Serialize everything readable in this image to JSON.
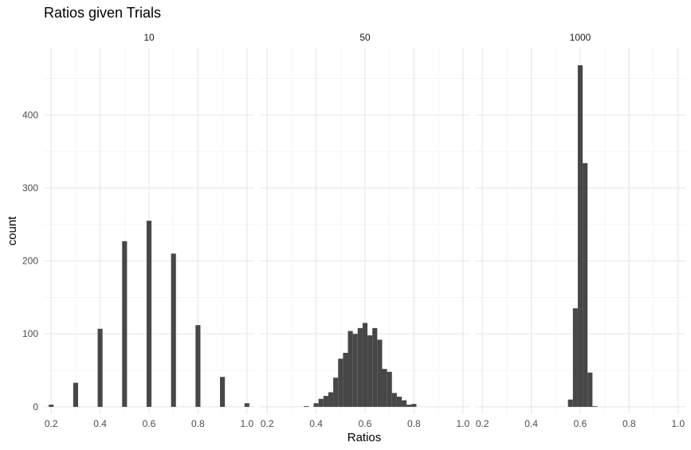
{
  "chart_data": {
    "type": "bar",
    "title": "Ratios given Trials",
    "xlabel": "Ratios",
    "ylabel": "count",
    "xlim": [
      0.17,
      1.03
    ],
    "ylim": [
      -10,
      492
    ],
    "x_ticks": [
      "0.2",
      "0.4",
      "0.6",
      "0.8",
      "1.0"
    ],
    "y_ticks": [
      "0",
      "100",
      "200",
      "300",
      "400"
    ],
    "grid": true,
    "legend": "none",
    "bar_color": "#474747",
    "panels": [
      {
        "name": "10",
        "bin_width": 0.02,
        "bins": [
          {
            "x": 0.2,
            "count": 3
          },
          {
            "x": 0.3,
            "count": 33
          },
          {
            "x": 0.4,
            "count": 107
          },
          {
            "x": 0.5,
            "count": 227
          },
          {
            "x": 0.6,
            "count": 255
          },
          {
            "x": 0.7,
            "count": 210
          },
          {
            "x": 0.8,
            "count": 112
          },
          {
            "x": 0.9,
            "count": 41
          },
          {
            "x": 1.0,
            "count": 5
          }
        ]
      },
      {
        "name": "50",
        "bin_width": 0.02,
        "bins": [
          {
            "x": 0.36,
            "count": 1
          },
          {
            "x": 0.4,
            "count": 5
          },
          {
            "x": 0.42,
            "count": 11
          },
          {
            "x": 0.44,
            "count": 15
          },
          {
            "x": 0.46,
            "count": 20
          },
          {
            "x": 0.48,
            "count": 40
          },
          {
            "x": 0.5,
            "count": 66
          },
          {
            "x": 0.52,
            "count": 74
          },
          {
            "x": 0.54,
            "count": 104
          },
          {
            "x": 0.56,
            "count": 100
          },
          {
            "x": 0.58,
            "count": 108
          },
          {
            "x": 0.6,
            "count": 115
          },
          {
            "x": 0.62,
            "count": 98
          },
          {
            "x": 0.64,
            "count": 108
          },
          {
            "x": 0.66,
            "count": 92
          },
          {
            "x": 0.68,
            "count": 52
          },
          {
            "x": 0.7,
            "count": 48
          },
          {
            "x": 0.72,
            "count": 19
          },
          {
            "x": 0.74,
            "count": 14
          },
          {
            "x": 0.76,
            "count": 9
          },
          {
            "x": 0.78,
            "count": 3
          },
          {
            "x": 0.8,
            "count": 4
          }
        ]
      },
      {
        "name": "1000",
        "bin_width": 0.02,
        "bins": [
          {
            "x": 0.56,
            "count": 10
          },
          {
            "x": 0.58,
            "count": 135
          },
          {
            "x": 0.6,
            "count": 468
          },
          {
            "x": 0.62,
            "count": 334
          },
          {
            "x": 0.64,
            "count": 47
          },
          {
            "x": 0.66,
            "count": 1
          }
        ]
      }
    ]
  }
}
